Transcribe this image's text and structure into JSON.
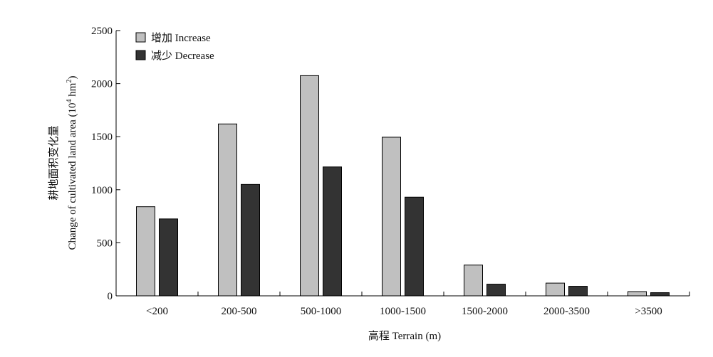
{
  "chart_data": {
    "type": "bar",
    "title": "",
    "xlabel": "高程 Terrain (m)",
    "ylabel_line1": "耕地面积变化量",
    "ylabel_line2_prefix": "Change of cultivated land area (10",
    "ylabel_line2_exp": "4",
    "ylabel_line2_mid": " hm",
    "ylabel_line2_exp2": "2",
    "ylabel_line2_suffix": ")",
    "categories": [
      "<200",
      "200-500",
      "500-1000",
      "1000-1500",
      "1500-2000",
      "2000-3500",
      ">3500"
    ],
    "series": [
      {
        "name": "增加 Increase",
        "color": "#c0c0c0",
        "values": [
          840,
          1620,
          2075,
          1495,
          290,
          120,
          40
        ]
      },
      {
        "name": "减少 Decrease",
        "color": "#333333",
        "values": [
          725,
          1050,
          1215,
          930,
          110,
          90,
          30
        ]
      }
    ],
    "ylim": [
      0,
      2500
    ],
    "yticks": [
      0,
      500,
      1000,
      1500,
      2000,
      2500
    ],
    "ytick_labels": [
      "0",
      "500",
      "1000",
      "1500",
      "2000",
      "2500"
    ],
    "grid": false,
    "legend_position": "top-left"
  }
}
